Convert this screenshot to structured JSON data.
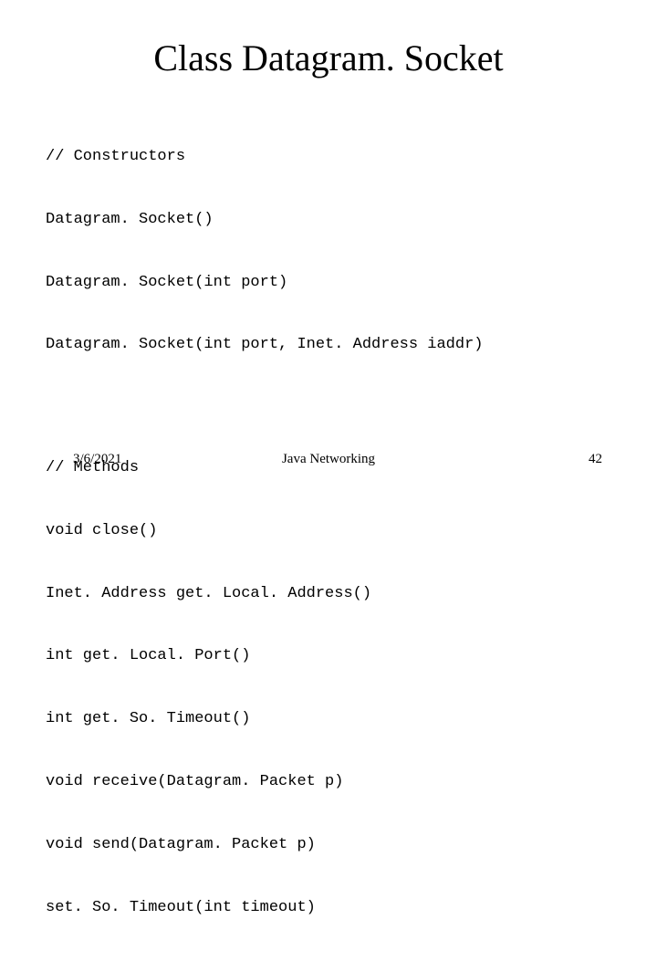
{
  "title": "Class Datagram. Socket",
  "constructors": {
    "comment": "// Constructors",
    "lines": [
      "Datagram. Socket()",
      "Datagram. Socket(int port)",
      "Datagram. Socket(int port, Inet. Address iaddr)"
    ]
  },
  "methods": {
    "comment": "// Methods",
    "lines": [
      "void close()",
      "Inet. Address get. Local. Address()",
      "int get. Local. Port()",
      "int get. So. Timeout()",
      "void receive(Datagram. Packet p)",
      "void send(Datagram. Packet p)",
      "set. So. Timeout(int timeout)"
    ]
  },
  "footer": {
    "date": "3/6/2021",
    "center": "Java Networking",
    "page": "42"
  },
  "colors": {
    "background": "#ffffff",
    "text": "#000000"
  },
  "fonts": {
    "title_family": "Times New Roman",
    "title_size_pt": 40,
    "code_family": "Courier New",
    "code_size_pt": 17,
    "footer_family": "Times New Roman",
    "footer_size_pt": 15
  }
}
